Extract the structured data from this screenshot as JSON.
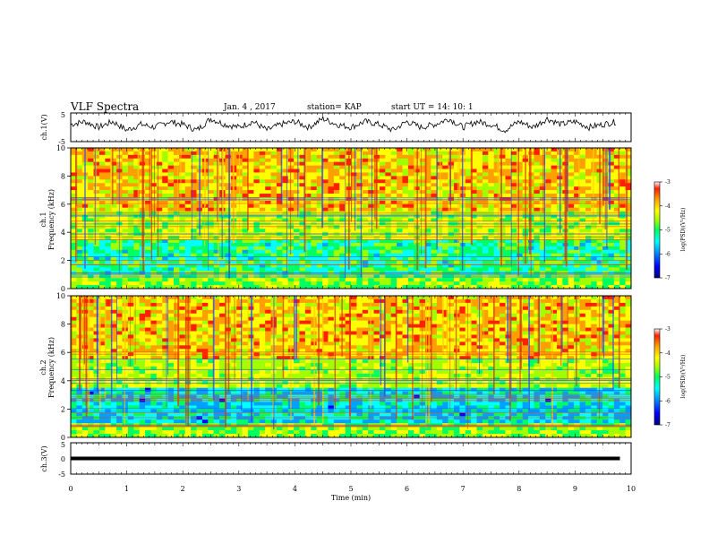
{
  "header": {
    "title": "VLF Spectra",
    "date": "Jan. 4 , 2017",
    "station": "station= KAP",
    "start": "start  UT =   14: 10: 1"
  },
  "colors": {
    "line": "#000000",
    "colormap": [
      "#000080",
      "#0000ff",
      "#00a0ff",
      "#00ffff",
      "#00ff60",
      "#a0ff00",
      "#ffff00",
      "#ffa000",
      "#ff2000",
      "#c00000"
    ]
  },
  "chart_data": [
    {
      "type": "line",
      "panel": "ch1-waveform",
      "ylabel": "ch.1(V)",
      "ylim": [
        -5,
        5
      ],
      "yticks": [
        "5",
        "-5"
      ],
      "x": [
        0,
        0.25,
        0.5,
        0.75,
        1,
        1.25,
        1.5,
        1.75,
        2,
        2.25,
        2.5,
        2.75,
        3,
        3.25,
        3.5,
        3.75,
        4,
        4.25,
        4.5,
        4.75,
        5,
        5.25,
        5.5,
        5.75,
        6,
        6.25,
        6.5,
        6.75,
        7,
        7.25,
        7.5,
        7.75,
        8,
        8.25,
        8.5,
        8.75,
        9,
        9.25,
        9.5,
        9.75
      ],
      "values": [
        1,
        2,
        0,
        2,
        -1,
        1,
        0,
        2,
        1,
        -1,
        3,
        1,
        0,
        2,
        -1,
        1,
        2,
        0,
        3,
        1,
        0,
        2,
        1,
        -1,
        2,
        0,
        1,
        3,
        0,
        2,
        1,
        -1,
        2,
        0,
        3,
        1,
        2,
        0,
        1,
        2
      ]
    },
    {
      "type": "heatmap",
      "panel": "ch1-spectrogram",
      "ylabel": "ch.1\nFrequency (kHz)",
      "ylim": [
        0,
        10
      ],
      "yticks": [
        "0",
        "2",
        "4",
        "6",
        "8",
        "10"
      ],
      "colorbar": {
        "label": "log(PSD)(V²/Hz)",
        "ticks": [
          "-3",
          "-4",
          "-5",
          "-6",
          "-7"
        ],
        "range": [
          -7,
          -3
        ]
      }
    },
    {
      "type": "heatmap",
      "panel": "ch2-spectrogram",
      "ylabel": "ch.2\nFrequency (kHz)",
      "ylim": [
        0,
        10
      ],
      "yticks": [
        "0",
        "2",
        "4",
        "6",
        "8",
        "10"
      ],
      "colorbar": {
        "label": "log(PSD)(V²/Hz)",
        "ticks": [
          "-3",
          "-4",
          "-5",
          "-6",
          "-7"
        ],
        "range": [
          -7,
          -3
        ]
      }
    },
    {
      "type": "line",
      "panel": "ch3-waveform",
      "ylabel": "ch.3(V)",
      "ylim": [
        -5,
        5
      ],
      "yticks": [
        "5",
        "0",
        "-5"
      ],
      "x": [
        0,
        9.8
      ],
      "values": [
        0,
        0
      ]
    }
  ],
  "xaxis": {
    "label": "Time (min)",
    "ticks": [
      "0",
      "1",
      "2",
      "3",
      "4",
      "5",
      "6",
      "7",
      "8",
      "9",
      "10"
    ],
    "xlim": [
      0,
      10
    ]
  }
}
